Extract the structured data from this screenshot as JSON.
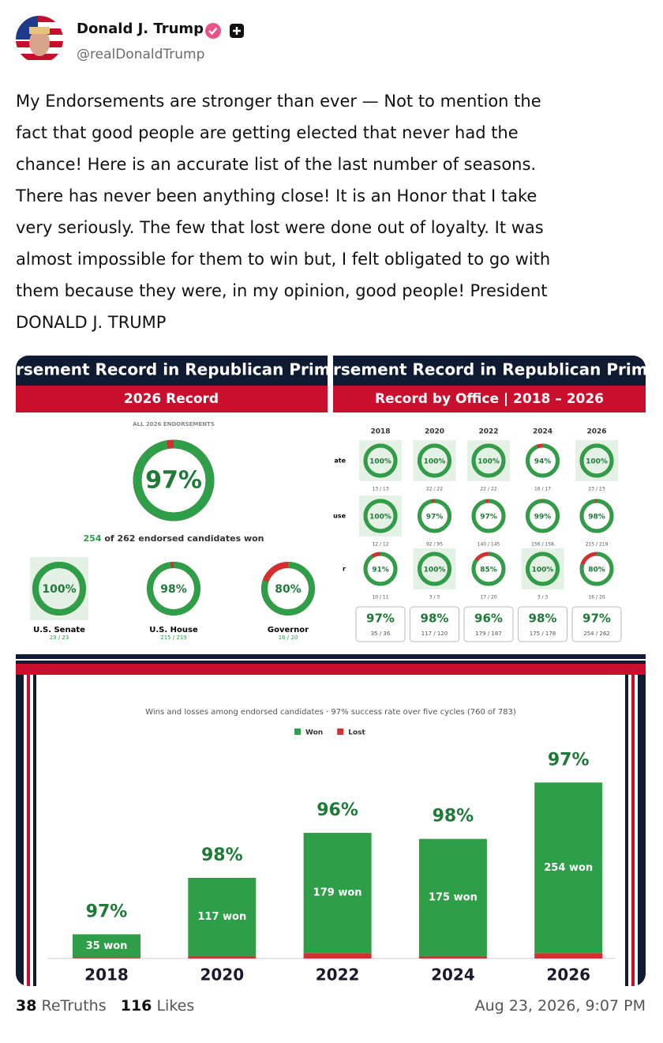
{
  "post": {
    "author": {
      "name": "Donald J. Trump",
      "handle": "@realDonaldTrump"
    },
    "text_lines": [
      "My Endorsements are stronger than ever — Not to mention the",
      "fact that good people are getting elected that never had the",
      "chance! Here is an accurate list of the last number of seasons.",
      "There has never been anything close! It is an Honor that I take",
      "very seriously. The few that lost were done out of loyalty. It was",
      "almost impossible for them to win but, I felt obligated to go with",
      "them because they were, in my opinion, good people! President",
      "DONALD J. TRUMP"
    ],
    "stats": {
      "retruths": 38,
      "retruths_label": "ReTruths",
      "likes": 116,
      "likes_label": "Likes"
    },
    "timestamp": "Aug 23, 2026, 9:07 PM"
  },
  "record_2026": {
    "banner": "rsement Record in Republican Prima",
    "heading": "2026 Record",
    "kicker": "ALL 2026 ENDORSEMENTS",
    "overall": {
      "value": 97,
      "label": "97%"
    },
    "summary_won": "254",
    "summary_rest": "of 262 endorsed candidates won",
    "offices": [
      {
        "name": "U.S. Senate",
        "percent": {
          "value": 100,
          "label": "100%"
        },
        "count": "23 / 23"
      },
      {
        "name": "U.S. House",
        "percent": {
          "value": 98,
          "label": "98%"
        },
        "count": "215 / 219"
      },
      {
        "name": "Governor",
        "percent": {
          "value": 80,
          "label": "80%"
        },
        "count": "16 / 20"
      }
    ]
  },
  "record_by_office": {
    "banner": "rsement Record in Republican Prim",
    "heading": "Record by Office | 2018 – 2026",
    "years": [
      "2018",
      "2020",
      "2022",
      "2024",
      "2026"
    ],
    "rows": [
      {
        "label": "ate",
        "cells": [
          {
            "percent": {
              "value": 100,
              "label": "100%"
            },
            "count": "13 / 13"
          },
          {
            "percent": {
              "value": 100,
              "label": "100%"
            },
            "count": "22 / 22"
          },
          {
            "percent": {
              "value": 100,
              "label": "100%"
            },
            "count": "22 / 22"
          },
          {
            "percent": {
              "value": 94,
              "label": "94%"
            },
            "count": "16 / 17"
          },
          {
            "percent": {
              "value": 100,
              "label": "100%"
            },
            "count": "23 / 23"
          }
        ]
      },
      {
        "label": "use",
        "cells": [
          {
            "percent": {
              "value": 100,
              "label": "100%"
            },
            "count": "12 / 12"
          },
          {
            "percent": {
              "value": 97,
              "label": "97%"
            },
            "count": "92 / 95"
          },
          {
            "percent": {
              "value": 97,
              "label": "97%"
            },
            "count": "140 / 145"
          },
          {
            "percent": {
              "value": 99,
              "label": "99%"
            },
            "count": "156 / 158"
          },
          {
            "percent": {
              "value": 98,
              "label": "98%"
            },
            "count": "215 / 219"
          }
        ]
      },
      {
        "label": "r",
        "cells": [
          {
            "percent": {
              "value": 91,
              "label": "91%"
            },
            "count": "10 / 11"
          },
          {
            "percent": {
              "value": 100,
              "label": "100%"
            },
            "count": "3 / 3"
          },
          {
            "percent": {
              "value": 85,
              "label": "85%"
            },
            "count": "17 / 20"
          },
          {
            "percent": {
              "value": 100,
              "label": "100%"
            },
            "count": "3 / 3"
          },
          {
            "percent": {
              "value": 80,
              "label": "80%"
            },
            "count": "16 / 20"
          }
        ]
      }
    ],
    "totals": [
      {
        "percent": "97%",
        "count": "35 / 36"
      },
      {
        "percent": "98%",
        "count": "117 / 120"
      },
      {
        "percent": "96%",
        "count": "179 / 187"
      },
      {
        "percent": "98%",
        "count": "175 / 178"
      },
      {
        "percent": "97%",
        "count": "254 / 262"
      }
    ]
  },
  "chart_data": {
    "type": "bar",
    "subtitle": "Wins and losses among endorsed candidates · 97% success rate over five cycles (760 of 783)",
    "stacked": true,
    "categories": [
      "2018",
      "2020",
      "2022",
      "2024",
      "2026"
    ],
    "series": [
      {
        "name": "Won",
        "color": "#2e9e48",
        "values": [
          35,
          117,
          179,
          175,
          254
        ],
        "value_labels": [
          "35 won",
          "117 won",
          "179 won",
          "175 won",
          "254 won"
        ]
      },
      {
        "name": "Lost",
        "color": "#d32f2f",
        "values": [
          1,
          3,
          8,
          3,
          8
        ]
      }
    ],
    "percent_labels": [
      "97%",
      "98%",
      "96%",
      "98%",
      "97%"
    ]
  }
}
